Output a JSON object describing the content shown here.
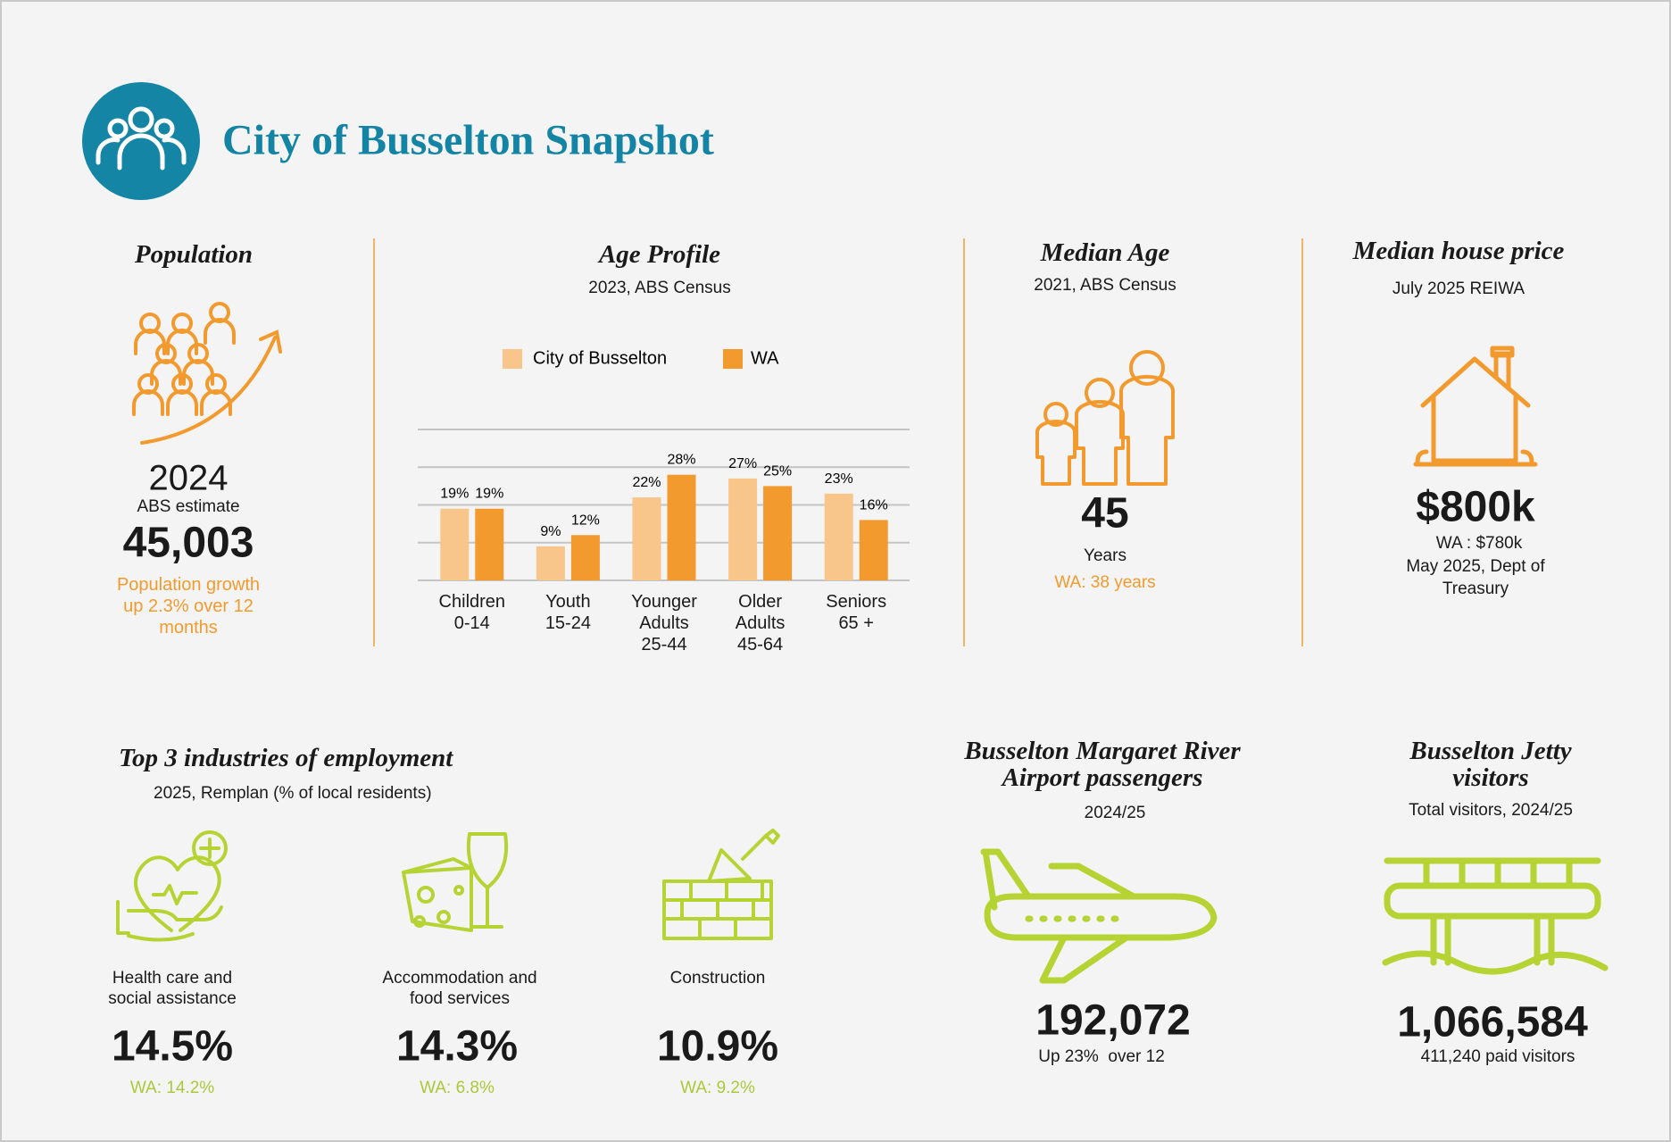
{
  "header": {
    "title": "City of Busselton Snapshot"
  },
  "population": {
    "heading": "Population",
    "year": "2024",
    "source": "ABS estimate",
    "value": "45,003",
    "note": "Population growth up 2.3% over 12 months"
  },
  "chart_data": {
    "type": "bar",
    "title": "Age Profile",
    "subtitle": "2023, ABS Census",
    "categories": [
      "Children\n0-14",
      "Youth\n15-24",
      "Younger\nAdults\n25-44",
      "Older\nAdults\n45-64",
      "Seniors\n65 +"
    ],
    "series": [
      {
        "name": "City of Busselton",
        "color": "#f8c58a",
        "values": [
          19,
          9,
          22,
          27,
          23
        ],
        "value_labels": [
          "19%",
          "9%",
          "22%",
          "27%",
          "23%"
        ]
      },
      {
        "name": "WA",
        "color": "#f29a2e",
        "values": [
          19,
          12,
          28,
          25,
          16
        ],
        "value_labels": [
          "19%",
          "12%",
          "28%",
          "25%",
          "16%"
        ]
      }
    ],
    "ylim": [
      0,
      40
    ],
    "yticks": [
      0,
      10,
      20,
      30,
      40
    ],
    "grid": true
  },
  "median_age": {
    "heading": "Median Age",
    "source": "2021, ABS Census",
    "value": "45",
    "unit": "Years",
    "wa": "WA: 38 years"
  },
  "house_price": {
    "heading": "Median house price",
    "source": "July 2025 REIWA",
    "value": "$800k",
    "wa": "WA : $780k",
    "wa_source": "May 2025, Dept of Treasury"
  },
  "industries": {
    "heading": "Top 3 industries of employment",
    "source": "2025, Remplan (% of local residents)",
    "items": [
      {
        "label": "Health care and\nsocial assistance",
        "value": "14.5%",
        "wa": "WA: 14.2%"
      },
      {
        "label": "Accommodation and\nfood services",
        "value": "14.3%",
        "wa": "WA: 6.8%"
      },
      {
        "label": "Construction",
        "value": "10.9%",
        "wa": "WA: 9.2%"
      }
    ]
  },
  "airport": {
    "heading": "Busselton Margaret River\nAirport passengers",
    "source": "2024/25",
    "value": "192,072",
    "note": "Up 23%  over 12"
  },
  "jetty": {
    "heading": "Busselton Jetty\nvisitors",
    "source": "Total visitors, 2024/25",
    "value": "1,066,584",
    "note": "411,240 paid visitors"
  }
}
